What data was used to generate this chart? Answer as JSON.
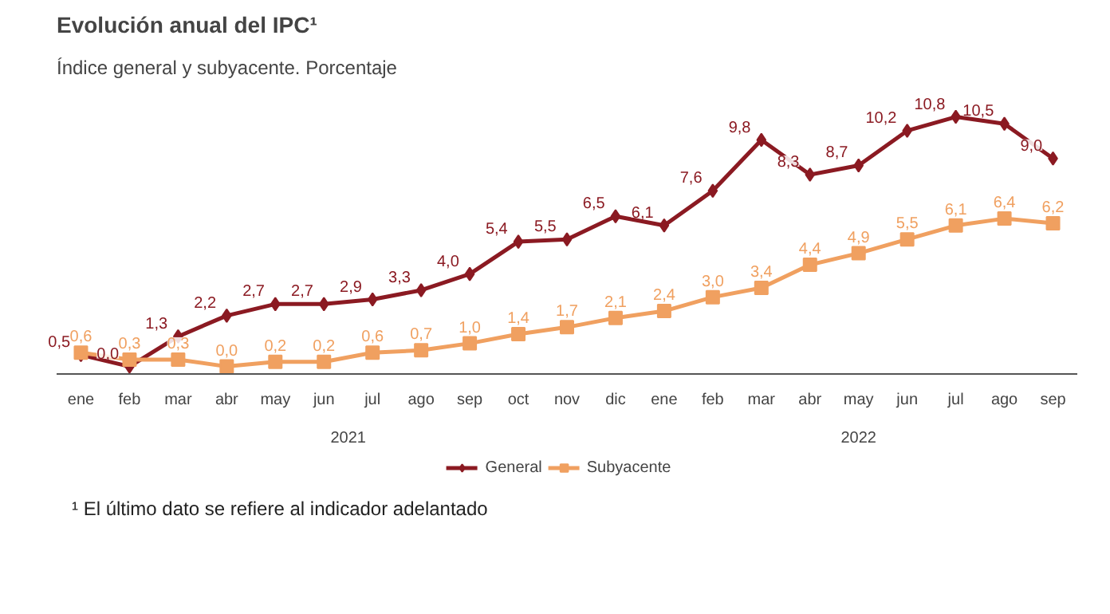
{
  "chart_data": {
    "type": "line",
    "title": "Evolución anual del IPC¹",
    "subtitle": "Índice general y subyacente. Porcentaje",
    "categories": [
      "ene",
      "feb",
      "mar",
      "abr",
      "may",
      "jun",
      "jul",
      "ago",
      "sep",
      "oct",
      "nov",
      "dic",
      "ene",
      "feb",
      "mar",
      "abr",
      "may",
      "jun",
      "jul",
      "ago",
      "sep"
    ],
    "series": [
      {
        "name": "General",
        "color": "#8b1a22",
        "marker": "diamond",
        "values": [
          0.5,
          0.0,
          1.3,
          2.2,
          2.7,
          2.7,
          2.9,
          3.3,
          4.0,
          5.4,
          5.5,
          6.5,
          6.1,
          7.6,
          9.8,
          8.3,
          8.7,
          10.2,
          10.8,
          10.5,
          9.0
        ],
        "value_labels": [
          "0,5",
          "0,0",
          "1,3",
          "2,2",
          "2,7",
          "2,7",
          "2,9",
          "3,3",
          "4,0",
          "5,4",
          "5,5",
          "6,5",
          "6,1",
          "7,6",
          "9,8",
          "8,3",
          "8,7",
          "10,2",
          "10,8",
          "10,5",
          "9,0"
        ]
      },
      {
        "name": "Subyacente",
        "color": "#f0a060",
        "marker": "square",
        "values": [
          0.6,
          0.3,
          0.3,
          0.0,
          0.2,
          0.2,
          0.6,
          0.7,
          1.0,
          1.4,
          1.7,
          2.1,
          2.4,
          3.0,
          3.4,
          4.4,
          4.9,
          5.5,
          6.1,
          6.4,
          6.2
        ],
        "value_labels": [
          "0,6",
          "0,3",
          "0,3",
          "0,0",
          "0,2",
          "0,2",
          "0,6",
          "0,7",
          "1,0",
          "1,4",
          "1,7",
          "2,1",
          "2,4",
          "3,0",
          "3,4",
          "4,4",
          "4,9",
          "5,5",
          "6,1",
          "6,4",
          "6,2"
        ]
      }
    ],
    "annotations": [
      "2021",
      "2022",
      "¹ El último dato se refiere al indicador adelantado"
    ],
    "data_labels": true,
    "legend": "bottom",
    "grid": false
  }
}
